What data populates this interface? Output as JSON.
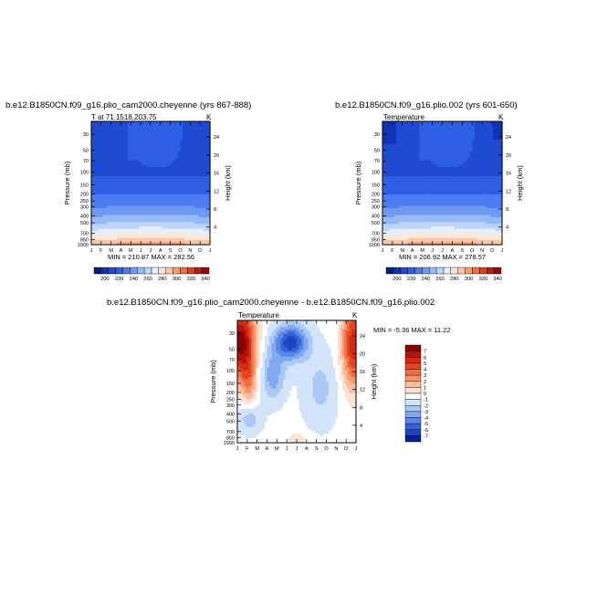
{
  "chart_data": [
    {
      "type": "heatmap",
      "title": "b.e12.B1850CN.f09_g16.plio_cam2000.cheyenne (yrs 867-888)",
      "subtitle_left": "T at 71.1518,203.75",
      "subtitle_right": "K",
      "xlabel": "",
      "ylabel": "Pressure (mb)",
      "ylabel_right": "Height (km)",
      "x_ticks": [
        "J",
        "F",
        "M",
        "A",
        "M",
        "J",
        "J",
        "A",
        "S",
        "O",
        "N",
        "D",
        "J"
      ],
      "y_ticks": [
        30,
        50,
        70,
        100,
        150,
        200,
        250,
        300,
        400,
        500,
        700,
        850,
        1000
      ],
      "y2_ticks": [
        24,
        20,
        16,
        12,
        8,
        4
      ],
      "ylim": [
        1000,
        20
      ],
      "stats": "MIN = 210.87  MAX = 282.56",
      "min": 210.87,
      "max": 282.56,
      "colorbar_labels": [
        "200",
        "220",
        "240",
        "260",
        "280",
        "300",
        "320",
        "340"
      ]
    },
    {
      "type": "heatmap",
      "title": "b.e12.B1850CN.f09_g16.plio.002 (yrs 601-650)",
      "subtitle_left": "Temperature",
      "subtitle_right": "K",
      "xlabel": "",
      "ylabel": "Pressure (mb)",
      "ylabel_right": "Height (km)",
      "x_ticks": [
        "J",
        "F",
        "M",
        "A",
        "M",
        "J",
        "J",
        "A",
        "S",
        "O",
        "N",
        "D",
        "J"
      ],
      "y_ticks": [
        30,
        50,
        70,
        100,
        150,
        200,
        250,
        300,
        400,
        500,
        700,
        850,
        1000
      ],
      "y2_ticks": [
        24,
        20,
        16,
        12,
        8,
        4
      ],
      "ylim": [
        1000,
        20
      ],
      "stats": "MIN = 206.92  MAX = 278.57",
      "min": 206.92,
      "max": 278.57,
      "colorbar_labels": [
        "200",
        "220",
        "240",
        "260",
        "280",
        "300",
        "320",
        "340"
      ]
    },
    {
      "type": "heatmap",
      "title": "b.e12.B1850CN.f09_g16.plio_cam2000.cheyenne - b.e12.B1850CN.f09_g16.plio.002",
      "subtitle_left": "Temperature",
      "subtitle_right": "K",
      "xlabel": "",
      "ylabel": "Pressure (mb)",
      "ylabel_right": "Height (km)",
      "x_ticks": [
        "J",
        "F",
        "M",
        "A",
        "M",
        "J",
        "J",
        "A",
        "S",
        "O",
        "N",
        "D",
        "J"
      ],
      "y_ticks": [
        30,
        50,
        70,
        100,
        150,
        200,
        250,
        300,
        400,
        500,
        700,
        850,
        1000
      ],
      "y2_ticks": [
        24,
        20,
        16,
        12,
        8,
        4
      ],
      "ylim": [
        1000,
        20
      ],
      "stats": "MIN = -5.36 MAX = 11.22",
      "min": -5.36,
      "max": 11.22,
      "colorbar_labels": [
        "7",
        "6",
        "5",
        "4",
        "3",
        "2",
        "1",
        "0",
        "-1",
        "-2",
        "-3",
        "-4",
        "-5",
        "-6",
        "-7"
      ]
    }
  ],
  "colors": {
    "abs_scale": [
      "#0a1a8c",
      "#1432b4",
      "#1e4bd2",
      "#2d5fe6",
      "#4b7df0",
      "#6e9af5",
      "#96b9f8",
      "#bed4fb",
      "#e4eefc",
      "#fde7d6",
      "#fbc6a8",
      "#f59b76",
      "#eb6e4b",
      "#d7412a",
      "#b41e14",
      "#8c0a0a"
    ],
    "diff_scale": [
      "#8c0000",
      "#b4140a",
      "#d22d14",
      "#e6461e",
      "#f06e46",
      "#f5966e",
      "#f9be9e",
      "#fce2d2",
      "#ffffff",
      "#d2e4fa",
      "#aac8f5",
      "#82a8f0",
      "#5a86e6",
      "#3264dc",
      "#1e46be",
      "#0a1e96"
    ]
  }
}
